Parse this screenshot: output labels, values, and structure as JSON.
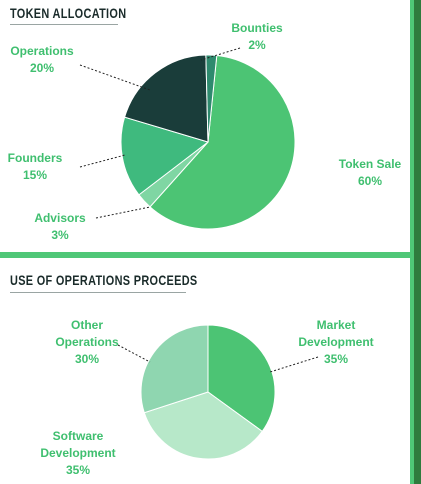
{
  "colors": {
    "accent_green": "#4fc777",
    "dark_border": "#2f7b3e",
    "label_green": "#3fbf6f"
  },
  "sections": {
    "top_title": "TOKEN ALLOCATION",
    "bottom_title": "USE OF OPERATIONS PROCEEDS"
  },
  "chart_data": [
    {
      "type": "pie",
      "title": "TOKEN ALLOCATION",
      "series": [
        {
          "label_lines": [
            "Token Sale"
          ],
          "value": 60,
          "value_label": "60%",
          "color": "#4cc474"
        },
        {
          "label_lines": [
            "Advisors"
          ],
          "value": 3,
          "value_label": "3%",
          "color": "#7fd6a3"
        },
        {
          "label_lines": [
            "Founders"
          ],
          "value": 15,
          "value_label": "15%",
          "color": "#3fba7e"
        },
        {
          "label_lines": [
            "Operations"
          ],
          "value": 20,
          "value_label": "20%",
          "color": "#1a3d3a"
        },
        {
          "label_lines": [
            "Bounties"
          ],
          "value": 2,
          "value_label": "2%",
          "color": "#2e8a6e"
        }
      ]
    },
    {
      "type": "pie",
      "title": "USE OF OPERATIONS PROCEEDS",
      "series": [
        {
          "label_lines": [
            "Market",
            "Development"
          ],
          "value": 35,
          "value_label": "35%",
          "color": "#4cc474"
        },
        {
          "label_lines": [
            "Software",
            "Development"
          ],
          "value": 35,
          "value_label": "35%",
          "color": "#b7e8c9"
        },
        {
          "label_lines": [
            "Other",
            "Operations"
          ],
          "value": 30,
          "value_label": "30%",
          "color": "#8fd6b0"
        }
      ]
    }
  ]
}
